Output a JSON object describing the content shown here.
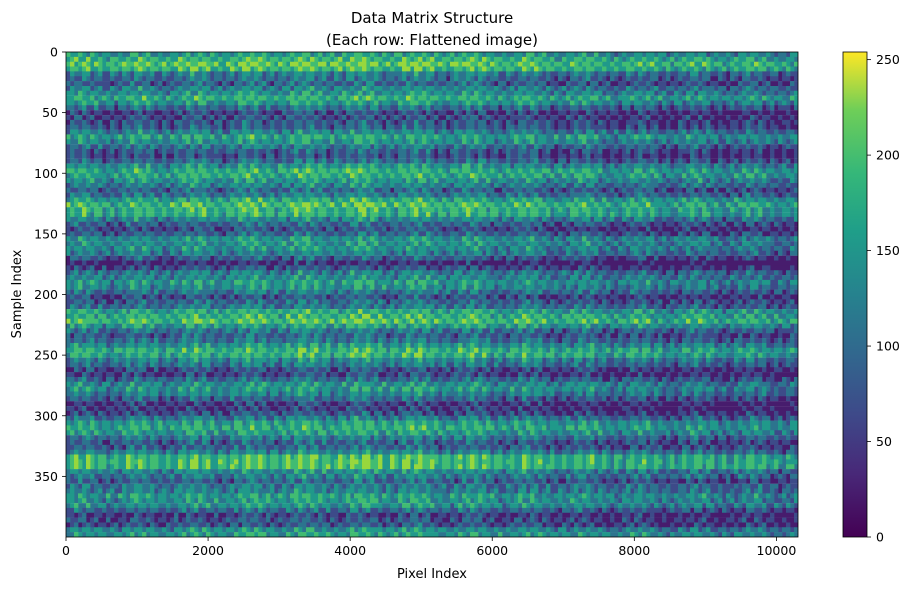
{
  "chart_data": {
    "type": "heatmap",
    "title": "Data Matrix Structure",
    "subtitle": "(Each row: Flattened image)",
    "xlabel": "Pixel Index",
    "ylabel": "Sample Index",
    "xlim": [
      0,
      10304
    ],
    "ylim": [
      400,
      0
    ],
    "x_ticks": [
      0,
      2000,
      4000,
      6000,
      8000,
      10000
    ],
    "y_ticks": [
      0,
      50,
      100,
      150,
      200,
      250,
      300,
      350
    ],
    "colormap": "viridis",
    "colorbar": {
      "min": 0,
      "max": 250,
      "ticks": [
        0,
        50,
        100,
        150,
        200,
        250
      ]
    },
    "grid": false,
    "rows": 400,
    "columns": 10304
  }
}
